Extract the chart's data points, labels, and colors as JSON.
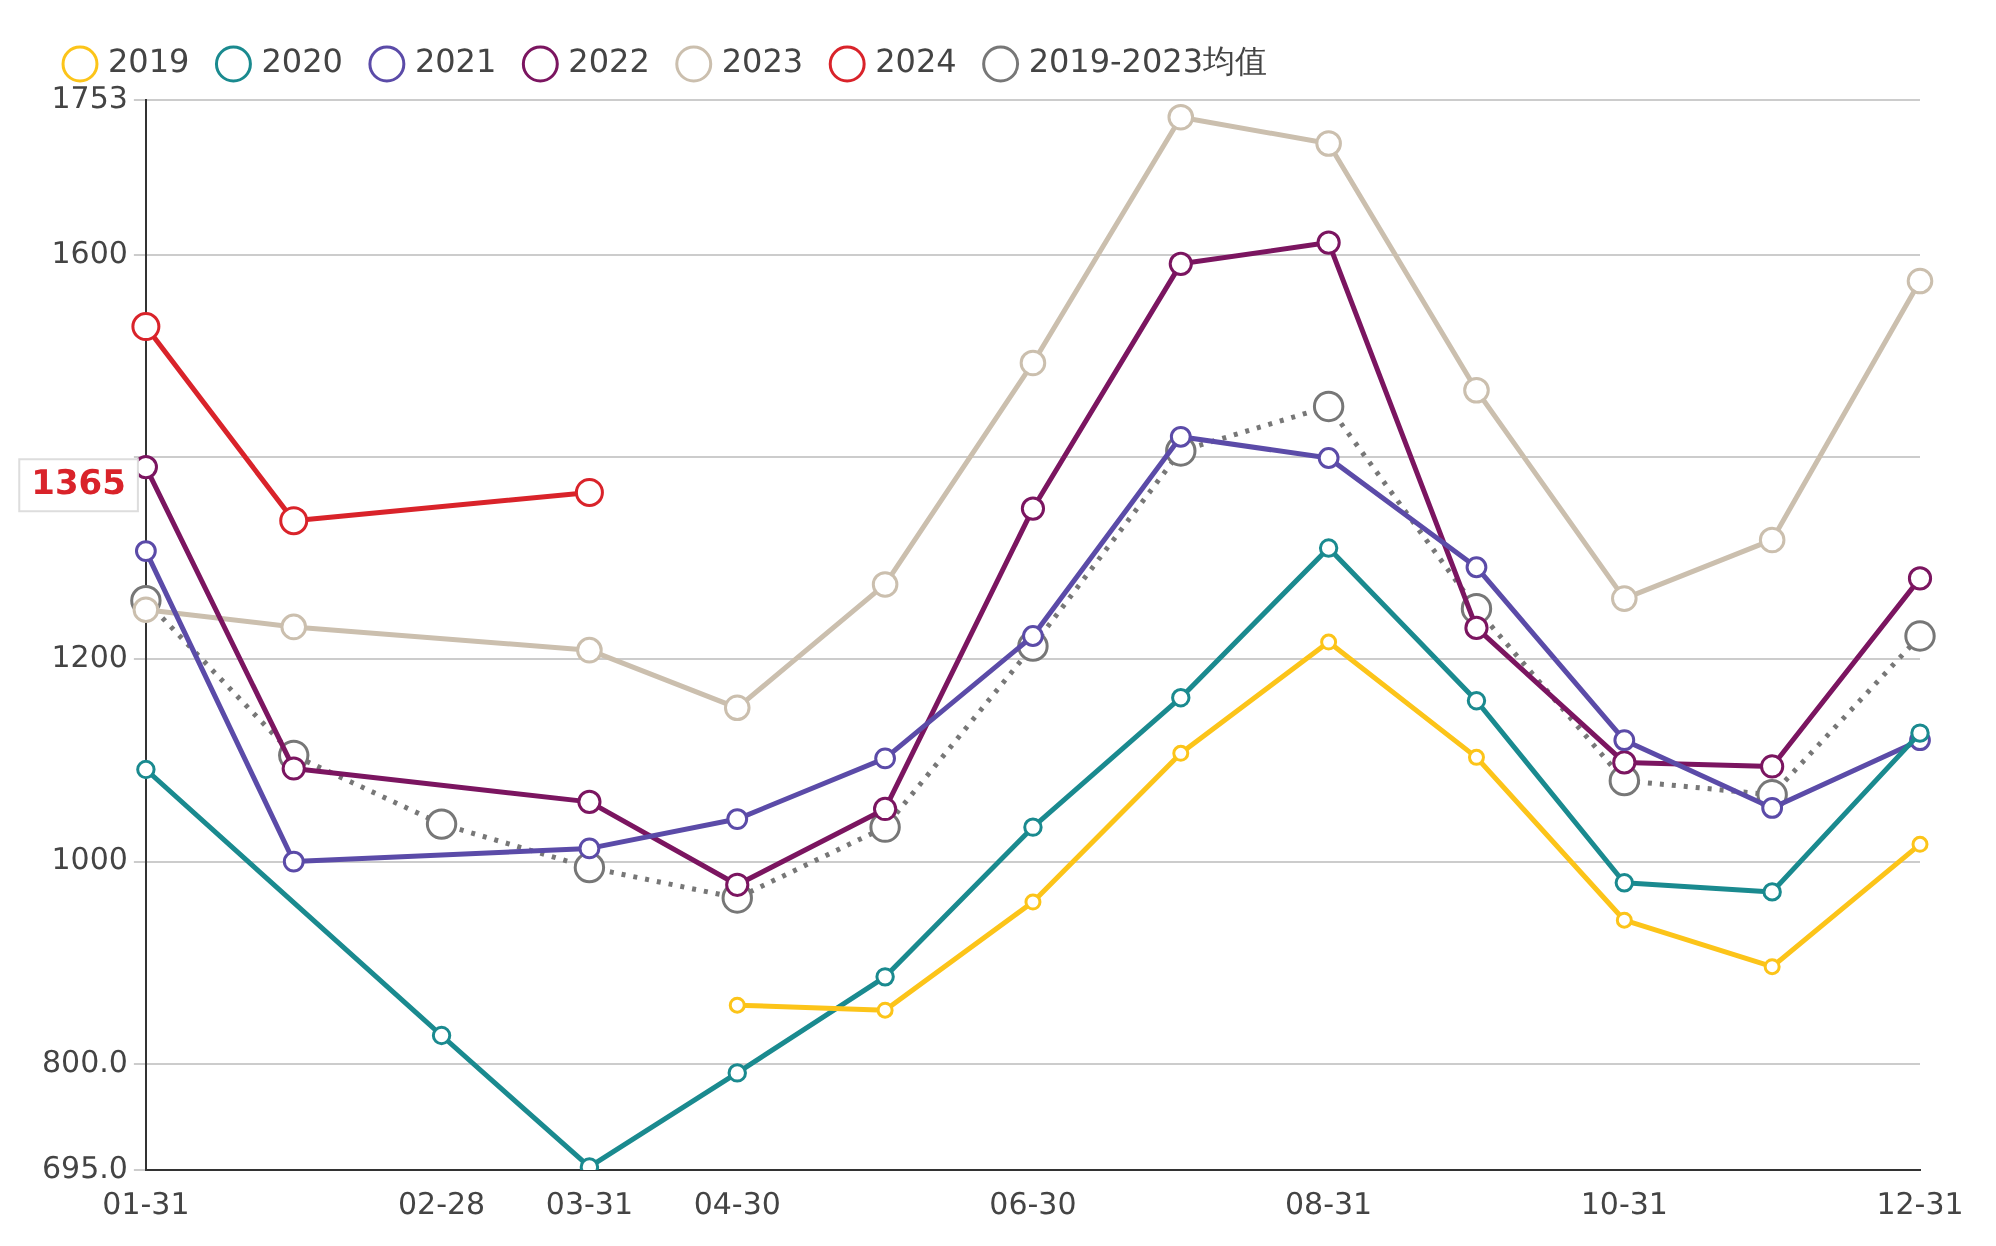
{
  "chart_data": {
    "type": "line",
    "categories": [
      "01-31",
      null,
      "02-28",
      "03-31",
      "04-30",
      null,
      "06-30",
      null,
      "08-31",
      null,
      "10-31",
      null,
      "12-31"
    ],
    "series": [
      {
        "name": "2019",
        "color": "#fcc419",
        "values": [
          null,
          null,
          null,
          null,
          858,
          853,
          960,
          1107,
          1217,
          1103,
          942,
          896,
          1017
        ]
      },
      {
        "name": "2020",
        "color": "#1a8a8f",
        "values": [
          1091,
          null,
          828,
          698,
          791,
          886,
          1034,
          1162,
          1310,
          1159,
          979,
          970,
          1127
        ]
      },
      {
        "name": "2021",
        "color": "#5b4ba8",
        "values": [
          1307,
          1000,
          null,
          1013,
          1042,
          1102,
          1223,
          1420,
          1399,
          1291,
          1120,
          1053,
          1120
        ]
      },
      {
        "name": "2022",
        "color": "#7b1560",
        "values": [
          1390,
          1092,
          null,
          1059,
          977,
          1052,
          1349,
          1591,
          1612,
          1231,
          1098,
          1094,
          1280
        ]
      },
      {
        "name": "2023",
        "color": "#cbbfae",
        "values": [
          1249,
          1232,
          null,
          1209,
          1152,
          1274,
          1493,
          1736,
          1710,
          1466,
          1260,
          1318,
          1574
        ]
      },
      {
        "name": "2024",
        "color": "#d9232a",
        "values": [
          1529,
          1337,
          null,
          1365,
          null,
          null,
          null,
          null,
          null,
          null,
          null,
          null,
          null
        ]
      },
      {
        "name": "2019-2023均值",
        "color": "#777777",
        "line_style": "dotted",
        "values": [
          1258,
          1105,
          1037,
          994,
          964,
          1034,
          1213,
          1406,
          1450,
          1250,
          1080,
          1066,
          1223
        ]
      }
    ],
    "ylim": [
      695,
      1753
    ],
    "yticks": [
      {
        "value": 695,
        "label": "695.0"
      },
      {
        "value": 800,
        "label": "800.0"
      },
      1000,
      1200,
      {
        "value": 1400,
        "label": null
      },
      1600,
      1753
    ],
    "annotations": [
      "1365"
    ],
    "grid": "y",
    "legend": "top",
    "marker": "circle",
    "line_style": "solid"
  }
}
